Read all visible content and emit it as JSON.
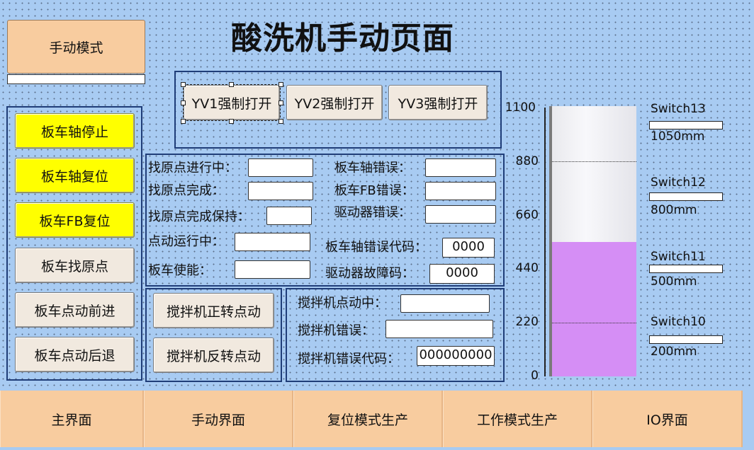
{
  "page_title": "酸洗机手动页面",
  "mode_button": "手动模式",
  "left_buttons": [
    "板车轴停止",
    "板车轴复位",
    "板车FB复位",
    "板车找原点",
    "板车点动前进",
    "板车点动后退"
  ],
  "yv_buttons": [
    "YV1强制打开",
    "YV2强制打开",
    "YV3强制打开"
  ],
  "status_left": [
    {
      "label": "找原点进行中：",
      "value": ""
    },
    {
      "label": "找原点完成：",
      "value": ""
    },
    {
      "label": "找原点完成保持：",
      "value": ""
    },
    {
      "label": "点动运行中：",
      "value": ""
    },
    {
      "label": "板车使能：",
      "value": ""
    }
  ],
  "status_right": [
    {
      "label": "板车轴错误：",
      "value": ""
    },
    {
      "label": "板车FB错误：",
      "value": ""
    },
    {
      "label": "驱动器错误：",
      "value": ""
    },
    {
      "label": "板车轴错误代码：",
      "value": "0000"
    },
    {
      "label": "驱动器故障码：",
      "value": "0000"
    }
  ],
  "mixer_buttons": [
    "搅拌机正转点动",
    "搅拌机反转点动"
  ],
  "mixer_status": [
    {
      "label": "搅拌机点动中：",
      "value": ""
    },
    {
      "label": "搅拌机错误：",
      "value": ""
    },
    {
      "label": "搅拌机错误代码：",
      "value": "000000000"
    }
  ],
  "gauge": {
    "ticks": [
      "1100",
      "880",
      "660",
      "440",
      "220",
      "0"
    ],
    "max": 1100,
    "level": 550,
    "fill_color": "#d58ef5",
    "marker_lines": [
      880,
      220
    ]
  },
  "switches": [
    {
      "name": "Switch13",
      "value": "1050mm"
    },
    {
      "name": "Switch12",
      "value": "800mm"
    },
    {
      "name": "Switch11",
      "value": "500mm"
    },
    {
      "name": "Switch10",
      "value": "200mm"
    }
  ],
  "nav_tabs": [
    "主界面",
    "手动界面",
    "复位模式生产",
    "工作模式生产",
    "IO界面"
  ]
}
